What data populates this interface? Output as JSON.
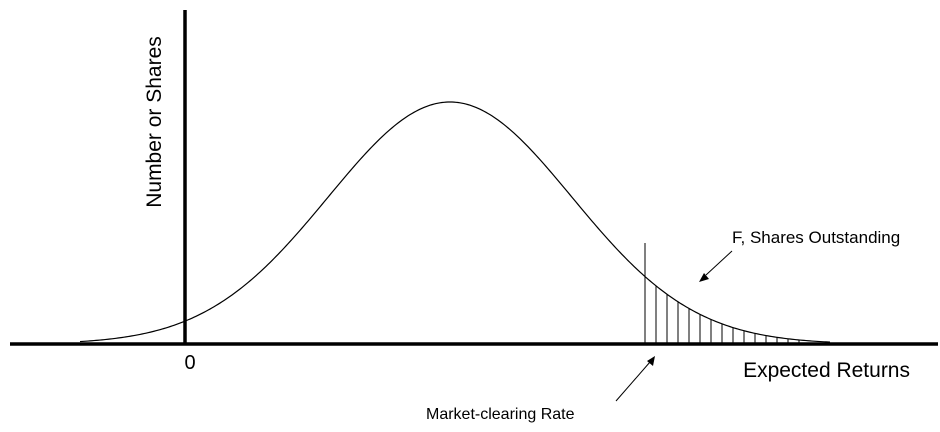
{
  "diagram": {
    "y_axis_label": "Number or Shares",
    "x_axis_label": "Expected Returns",
    "origin_label": "0",
    "shaded_area_label": "F, Shares Outstanding",
    "cutoff_label": "Market-clearing Rate"
  }
}
